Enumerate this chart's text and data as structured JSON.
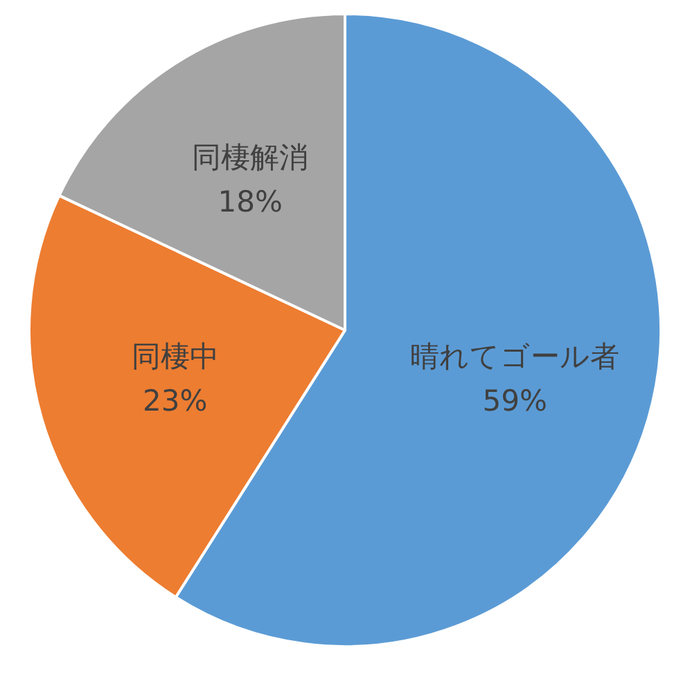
{
  "chart_data": {
    "type": "pie",
    "categories": [
      "晴れてゴール者",
      "同棲中",
      "同棲解消"
    ],
    "values": [
      59,
      23,
      18
    ],
    "value_labels": [
      "59%",
      "23%",
      "18%"
    ],
    "colors": [
      "#5b9bd5",
      "#ed7d31",
      "#a5a5a5"
    ],
    "legend": false
  }
}
